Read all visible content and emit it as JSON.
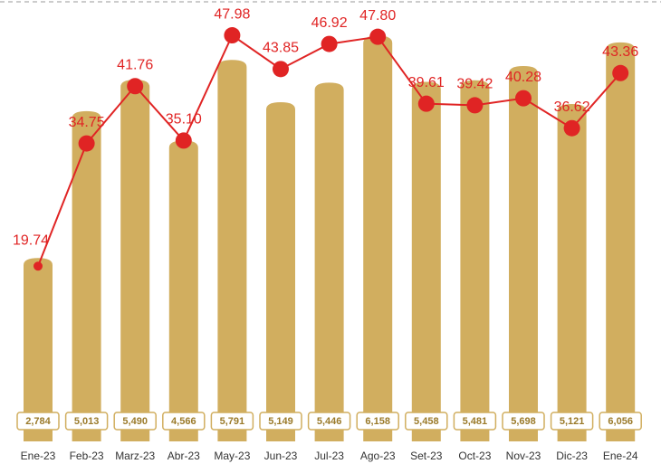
{
  "chart_data": {
    "type": "bar_line",
    "categories": [
      "Ene-23",
      "Feb-23",
      "Marz-23",
      "Abr-23",
      "May-23",
      "Jun-23",
      "Jul-23",
      "Ago-23",
      "Set-23",
      "Oct-23",
      "Nov-23",
      "Dic-23",
      "Ene-24"
    ],
    "series": [
      {
        "type": "bar",
        "axis": "y2",
        "color": "#d1ae5f",
        "values": [
          2784,
          5013,
          5490,
          4566,
          5791,
          5149,
          5446,
          6158,
          5458,
          5481,
          5698,
          5121,
          6056
        ],
        "value_labels": [
          "2,784",
          "5,013",
          "5,490",
          "4,566",
          "5,791",
          "5,149",
          "5,446",
          "6,158",
          "5,458",
          "5,481",
          "5,698",
          "5,121",
          "6,056"
        ]
      },
      {
        "type": "line",
        "color": "#e02424",
        "values": [
          19.74,
          34.75,
          41.76,
          35.1,
          47.98,
          43.85,
          46.92,
          47.8,
          39.61,
          39.42,
          40.28,
          36.62,
          43.36
        ],
        "value_labels": [
          "19.74",
          "34.75",
          "41.76",
          "35.10",
          "47.98",
          "43.85",
          "46.92",
          "47.80",
          "39.61",
          "39.42",
          "40.28",
          "36.62",
          "43.36"
        ]
      }
    ],
    "ylim": [
      -1.7,
      52.3
    ],
    "y2lim": [
      0,
      6700
    ]
  }
}
